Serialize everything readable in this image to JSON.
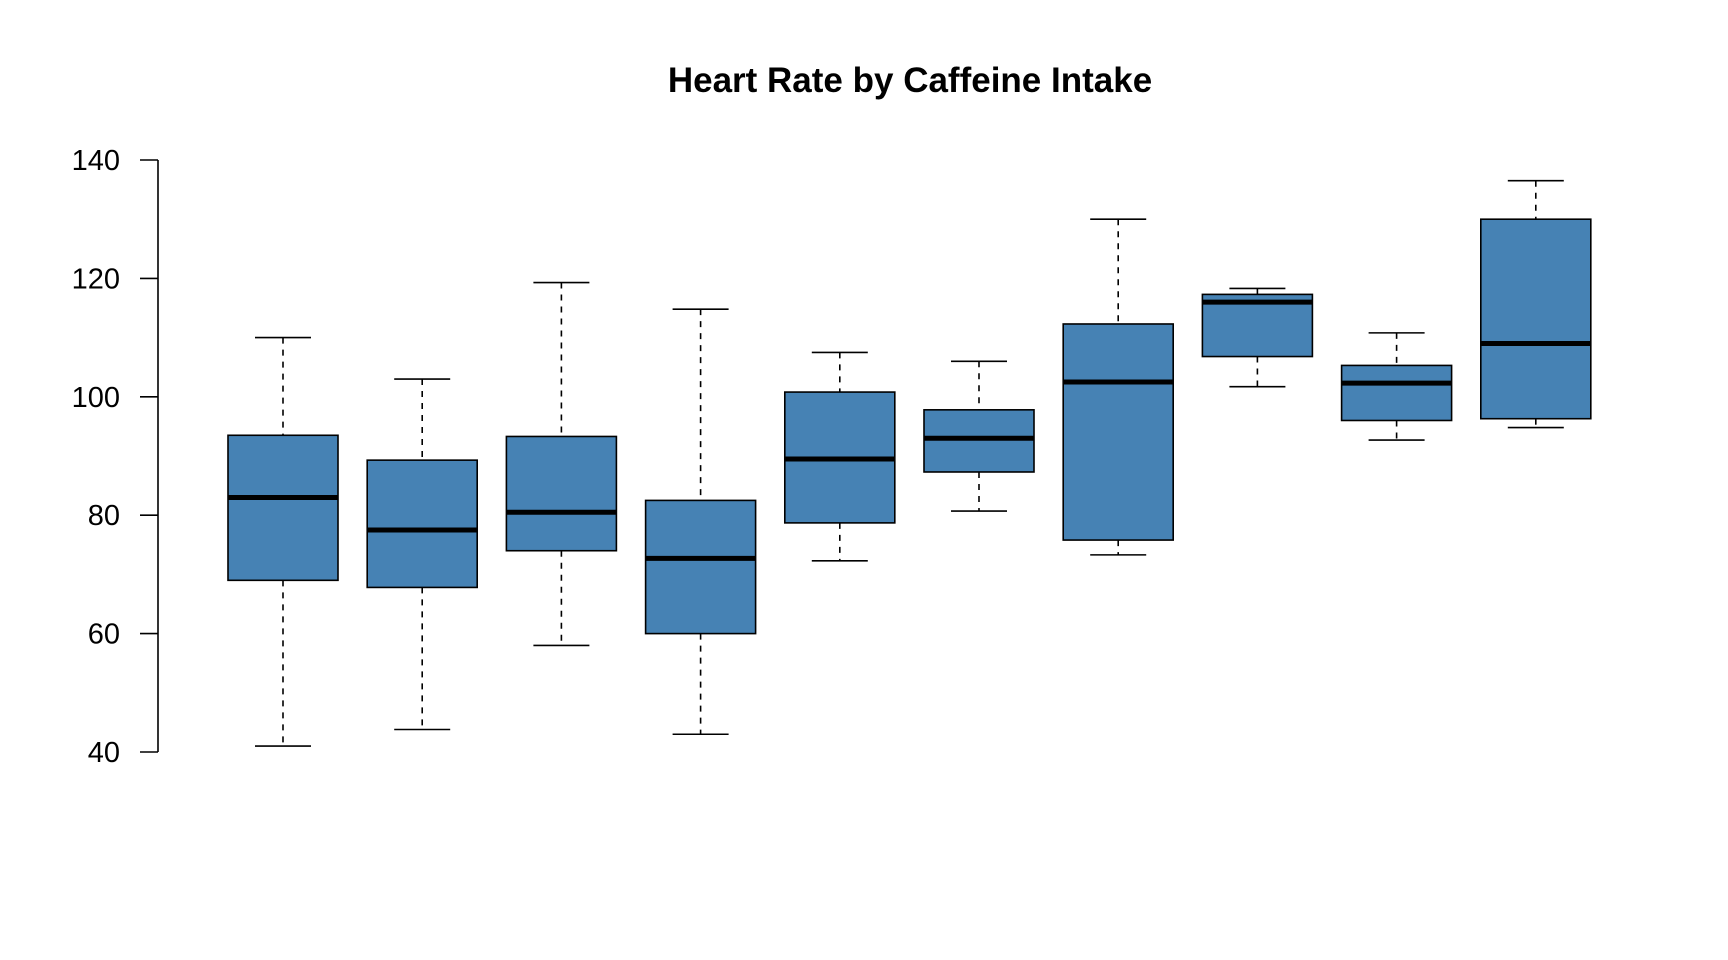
{
  "chart_data": {
    "type": "boxplot",
    "title": "Heart Rate by Caffeine Intake",
    "xlabel": "",
    "ylabel": "",
    "ylim": [
      40,
      140
    ],
    "yticks": [
      40,
      60,
      80,
      100,
      120,
      140
    ],
    "grid": false,
    "box_color": "#4682b4",
    "boxes": [
      {
        "min": 41.0,
        "q1": 69.0,
        "median": 83.0,
        "q3": 93.5,
        "max": 110.0
      },
      {
        "min": 43.8,
        "q1": 67.8,
        "median": 77.5,
        "q3": 89.3,
        "max": 103.0
      },
      {
        "min": 58.0,
        "q1": 74.0,
        "median": 80.5,
        "q3": 93.3,
        "max": 119.3
      },
      {
        "min": 43.0,
        "q1": 60.0,
        "median": 72.7,
        "q3": 82.5,
        "max": 114.8
      },
      {
        "min": 72.3,
        "q1": 78.7,
        "median": 89.5,
        "q3": 100.8,
        "max": 107.5
      },
      {
        "min": 80.7,
        "q1": 87.3,
        "median": 93.0,
        "q3": 97.8,
        "max": 106.0
      },
      {
        "min": 73.3,
        "q1": 75.8,
        "median": 102.5,
        "q3": 112.3,
        "max": 130.0
      },
      {
        "min": 101.7,
        "q1": 106.8,
        "median": 116.0,
        "q3": 117.3,
        "max": 118.3
      },
      {
        "min": 92.7,
        "q1": 96.0,
        "median": 102.3,
        "q3": 105.3,
        "max": 110.8
      },
      {
        "min": 94.8,
        "q1": 96.3,
        "median": 109.0,
        "q3": 130.0,
        "max": 136.5
      }
    ]
  }
}
